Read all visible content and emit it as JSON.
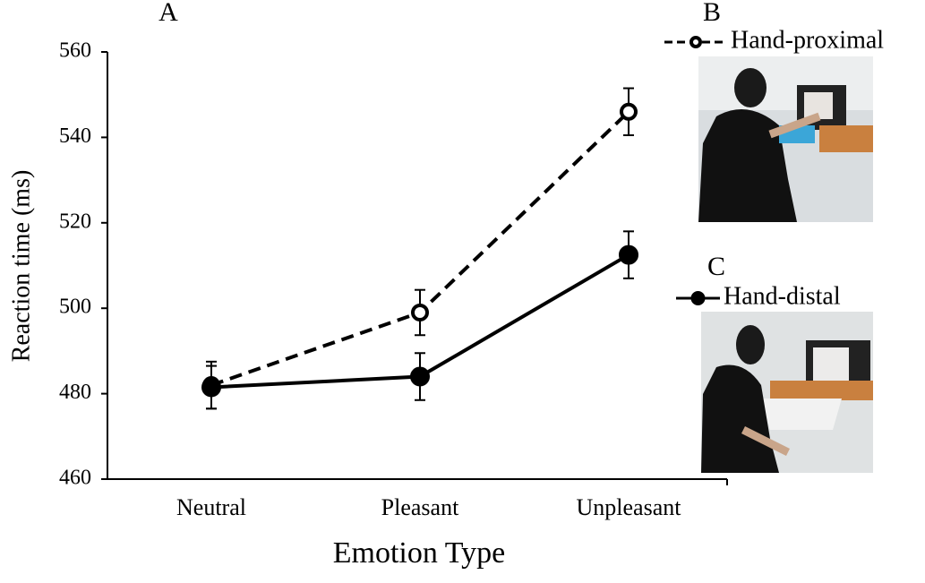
{
  "chart_data": {
    "type": "line",
    "panel_labels": [
      "A",
      "B",
      "C"
    ],
    "x_label": "Emotion Type",
    "y_label": "Reaction time (ms)",
    "categories": [
      "Neutral",
      "Pleasant",
      "Unpleasant"
    ],
    "series": [
      {
        "name": "Hand-proximal",
        "color": "#000000",
        "line_style": "dashed",
        "marker": "open",
        "values": [
          482,
          499,
          546
        ],
        "errors": [
          5.5,
          5.3,
          5.5
        ]
      },
      {
        "name": "Hand-distal",
        "color": "#000000",
        "line_style": "solid",
        "marker": "filled",
        "values": [
          481.5,
          484,
          512.5
        ],
        "errors": [
          5,
          5.5,
          5.5
        ]
      }
    ],
    "ylim": [
      460,
      560
    ],
    "yticks": [
      460,
      480,
      500,
      520,
      540,
      560
    ],
    "grid": false
  }
}
